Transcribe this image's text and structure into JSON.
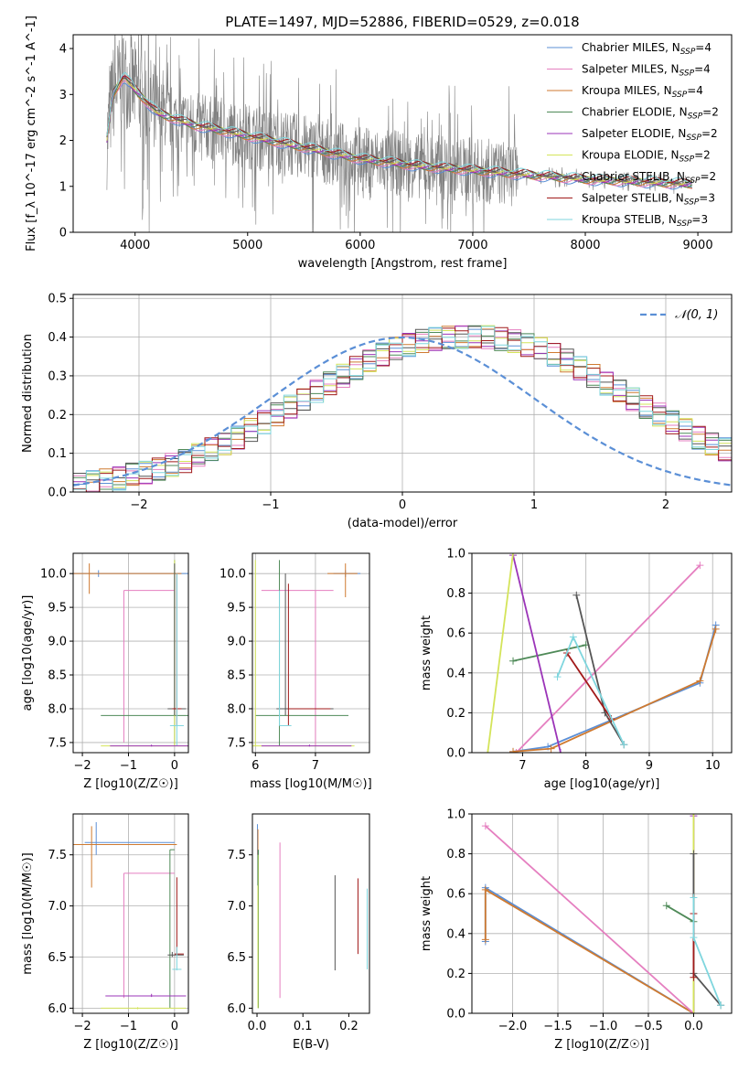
{
  "figure": {
    "title": "PLATE=1497, MJD=52886, FIBERID=0529, z=0.018"
  },
  "colors": {
    "chabrier_miles": "#5b8fd6",
    "salpeter_miles": "#e57fc0",
    "kroupa_miles": "#cf7a30",
    "chabrier_elodie": "#4f8a58",
    "salpeter_elodie": "#9b34b8",
    "kroupa_elodie": "#d4e45a",
    "chabrier_stelib": "#555555",
    "salpeter_stelib": "#a11a1a",
    "kroupa_stelib": "#7fd6de",
    "data": "#808080",
    "normal": "#5b8fd6",
    "grid": "#b0b0b0"
  },
  "chart_data": [
    {
      "id": "spectrum",
      "type": "line",
      "title": "",
      "xlabel": "wavelength [Angstrom, rest frame]",
      "ylabel": "Flux [f_λ 10^-17 erg cm^-2 s^-1 A^-1]",
      "xlim": [
        3450,
        9300
      ],
      "ylim": [
        0,
        4.3
      ],
      "xticks": [
        4000,
        5000,
        6000,
        7000,
        8000,
        9000
      ],
      "yticks": [
        0,
        1,
        2,
        3,
        4
      ],
      "grid": false,
      "legend": "top-right",
      "legend_entries": [
        {
          "label": "Chabrier MILES, N",
          "sub": "SSP",
          "n": "=4",
          "color": "chabrier_miles"
        },
        {
          "label": "Salpeter MILES, N",
          "sub": "SSP",
          "n": "=4",
          "color": "salpeter_miles"
        },
        {
          "label": "Kroupa MILES, N",
          "sub": "SSP",
          "n": "=4",
          "color": "kroupa_miles"
        },
        {
          "label": "Chabrier ELODIE, N",
          "sub": "SSP",
          "n": "=2",
          "color": "chabrier_elodie"
        },
        {
          "label": "Salpeter ELODIE, N",
          "sub": "SSP",
          "n": "=2",
          "color": "salpeter_elodie"
        },
        {
          "label": "Kroupa ELODIE, N",
          "sub": "SSP",
          "n": "=2",
          "color": "kroupa_elodie"
        },
        {
          "label": "Chabrier STELIB, N",
          "sub": "SSP",
          "n": "=2",
          "color": "chabrier_stelib"
        },
        {
          "label": "Salpeter STELIB, N",
          "sub": "SSP",
          "n": "=3",
          "color": "salpeter_stelib"
        },
        {
          "label": "Kroupa STELIB, N",
          "sub": "SSP",
          "n": "=3",
          "color": "kroupa_stelib"
        }
      ],
      "model_curve": {
        "x": [
          3750,
          3800,
          3900,
          4000,
          4200,
          4500,
          5000,
          5500,
          6000,
          6500,
          7000,
          7500,
          8000,
          8500,
          8900
        ],
        "y": [
          2.0,
          3.0,
          3.4,
          3.1,
          2.6,
          2.35,
          2.1,
          1.85,
          1.6,
          1.45,
          1.35,
          1.25,
          1.15,
          1.1,
          1.05
        ]
      },
      "data_range": [
        3750,
        7400
      ]
    },
    {
      "id": "residuals",
      "type": "line",
      "xlabel": "(data-model)/error",
      "ylabel": "Normed distribution",
      "xlim": [
        -2.5,
        2.5
      ],
      "ylim": [
        0,
        0.51
      ],
      "xticks": [
        -2,
        -1,
        0,
        1,
        2
      ],
      "yticks": [
        0.0,
        0.1,
        0.2,
        0.3,
        0.4,
        0.5
      ],
      "grid": true,
      "legend": "top-right",
      "legend_label": "N(0,1)",
      "bin_width": 0.1,
      "hist_base": [
        0.02,
        0.025,
        0.03,
        0.035,
        0.045,
        0.05,
        0.06,
        0.07,
        0.08,
        0.095,
        0.11,
        0.125,
        0.14,
        0.16,
        0.18,
        0.2,
        0.22,
        0.24,
        0.26,
        0.28,
        0.3,
        0.32,
        0.34,
        0.355,
        0.37,
        0.38,
        0.39,
        0.395,
        0.4,
        0.4,
        0.4,
        0.4,
        0.395,
        0.39,
        0.38,
        0.37,
        0.355,
        0.34,
        0.32,
        0.3,
        0.28,
        0.26,
        0.24,
        0.22,
        0.2,
        0.18,
        0.16,
        0.14,
        0.125,
        0.11
      ]
    },
    {
      "id": "z-age",
      "type": "scatter",
      "xlabel": "Z [log10(Z/Z☉)]",
      "ylabel": "age [log10(age/yr)]",
      "xlim": [
        -2.2,
        0.3
      ],
      "ylim": [
        7.35,
        10.3
      ],
      "xticks": [
        -2,
        -1,
        0
      ],
      "yticks": [
        7.5,
        8.0,
        8.5,
        9.0,
        9.5,
        10.0
      ],
      "grid": true,
      "points": [
        {
          "model": "chabrier_miles",
          "x": -1.65,
          "y": 10.0,
          "ex": [
            -2.2,
            0.3
          ],
          "ey": [
            9.95,
            10.05
          ]
        },
        {
          "model": "kroupa_miles",
          "x": -1.85,
          "y": 10.0,
          "ex": [
            -2.2,
            0.15
          ],
          "ey": [
            9.7,
            10.15
          ]
        },
        {
          "model": "salpeter_miles",
          "x": -1.1,
          "y": 9.75,
          "ex": [
            -1.1,
            0.0
          ],
          "ey": [
            7.5,
            9.75
          ]
        },
        {
          "model": "chabrier_elodie",
          "x": 0.0,
          "y": 7.9,
          "ex": [
            -1.6,
            0.3
          ],
          "ey": [
            7.45,
            10.2
          ]
        },
        {
          "model": "kroupa_elodie",
          "x": 0.0,
          "y": 7.45,
          "ex": [
            -1.6,
            0.3
          ],
          "ey": [
            7.45,
            10.2
          ]
        },
        {
          "model": "chabrier_stelib",
          "x": 0.0,
          "y": 8.0,
          "ex": [
            -0.15,
            0.25
          ],
          "ey": [
            7.9,
            10.15
          ]
        },
        {
          "model": "salpeter_stelib",
          "x": 0.05,
          "y": 8.0,
          "ex": [
            -0.05,
            0.15
          ],
          "ey": [
            7.75,
            10.0
          ]
        },
        {
          "model": "kroupa_stelib",
          "x": 0.05,
          "y": 7.75,
          "ex": [
            -0.1,
            0.2
          ],
          "ey": [
            7.45,
            10.0
          ]
        },
        {
          "model": "salpeter_elodie",
          "x": -0.5,
          "y": 7.45,
          "ex": [
            -1.4,
            0.3
          ],
          "ey": [
            7.44,
            7.47
          ]
        }
      ]
    },
    {
      "id": "mass-age",
      "type": "scatter",
      "xlabel": "mass [log10(M/M☉)]",
      "ylabel": "",
      "xlim": [
        5.95,
        7.9
      ],
      "ylim": [
        7.35,
        10.3
      ],
      "xticks": [
        6,
        7
      ],
      "yticks": [
        7.5,
        8.0,
        8.5,
        9.0,
        9.5,
        10.0
      ],
      "grid": true,
      "points": [
        {
          "model": "chabrier_miles",
          "x": 7.5,
          "y": 10.0,
          "ex": [
            7.3,
            7.75
          ],
          "ey": [
            9.95,
            10.05
          ]
        },
        {
          "model": "kroupa_miles",
          "x": 7.5,
          "y": 10.0,
          "ex": [
            7.2,
            7.7
          ],
          "ey": [
            9.65,
            10.15
          ]
        },
        {
          "model": "salpeter_miles",
          "x": 7.0,
          "y": 9.75,
          "ex": [
            6.1,
            7.3
          ],
          "ey": [
            7.45,
            9.75
          ]
        },
        {
          "model": "chabrier_elodie",
          "x": 6.4,
          "y": 7.9,
          "ex": [
            6.0,
            7.55
          ],
          "ey": [
            7.45,
            10.2
          ]
        },
        {
          "model": "kroupa_elodie",
          "x": 6.0,
          "y": 7.45,
          "ex": [
            5.95,
            7.65
          ],
          "ey": [
            7.45,
            10.2
          ]
        },
        {
          "model": "chabrier_stelib",
          "x": 6.5,
          "y": 8.0,
          "ex": [
            6.35,
            7.3
          ],
          "ey": [
            7.9,
            10.0
          ]
        },
        {
          "model": "salpeter_stelib",
          "x": 6.55,
          "y": 8.0,
          "ex": [
            6.55,
            7.25
          ],
          "ey": [
            7.75,
            9.85
          ]
        },
        {
          "model": "kroupa_stelib",
          "x": 6.4,
          "y": 7.75,
          "ex": [
            6.4,
            6.6
          ],
          "ey": [
            7.75,
            9.75
          ]
        },
        {
          "model": "salpeter_elodie",
          "x": 6.9,
          "y": 7.45,
          "ex": [
            6.1,
            7.6
          ],
          "ey": [
            7.44,
            7.47
          ]
        }
      ]
    },
    {
      "id": "age-weight",
      "type": "line",
      "xlabel": "age [log10(age/yr)]",
      "ylabel": "mass weight",
      "xlim": [
        6.2,
        10.3
      ],
      "ylim": [
        0,
        1.0
      ],
      "xticks": [
        7,
        8,
        9,
        10
      ],
      "yticks": [
        0.0,
        0.2,
        0.4,
        0.6,
        0.8,
        1.0
      ],
      "grid": true,
      "series": [
        {
          "model": "chabrier_miles",
          "x": [
            6.85,
            7.4,
            9.8,
            10.05
          ],
          "y": [
            0.005,
            0.03,
            0.35,
            0.64
          ]
        },
        {
          "model": "salpeter_miles",
          "x": [
            6.9,
            9.8
          ],
          "y": [
            0.0,
            0.94
          ]
        },
        {
          "model": "kroupa_miles",
          "x": [
            6.85,
            7.45,
            9.8,
            10.05
          ],
          "y": [
            0.005,
            0.02,
            0.36,
            0.62
          ]
        },
        {
          "model": "chabrier_elodie",
          "x": [
            6.85,
            8.0
          ],
          "y": [
            0.46,
            0.54
          ]
        },
        {
          "model": "salpeter_elodie",
          "x": [
            6.85,
            7.6
          ],
          "y": [
            0.99,
            0.0
          ]
        },
        {
          "model": "kroupa_elodie",
          "x": [
            6.45,
            6.85
          ],
          "y": [
            0.0,
            1.0
          ]
        },
        {
          "model": "chabrier_stelib",
          "x": [
            7.85,
            8.3,
            8.6
          ],
          "y": [
            0.79,
            0.2,
            0.04
          ]
        },
        {
          "model": "salpeter_stelib",
          "x": [
            7.7,
            8.4
          ],
          "y": [
            0.5,
            0.17
          ]
        },
        {
          "model": "kroupa_stelib",
          "x": [
            7.55,
            7.8,
            8.6
          ],
          "y": [
            0.38,
            0.58,
            0.04
          ]
        }
      ]
    },
    {
      "id": "z-mass",
      "type": "scatter",
      "xlabel": "Z [log10(Z/Z☉)]",
      "ylabel": "mass [log10(M/M☉)]",
      "xlim": [
        -2.2,
        0.3
      ],
      "ylim": [
        5.95,
        7.9
      ],
      "xticks": [
        -2,
        -1,
        0
      ],
      "yticks": [
        6.0,
        6.5,
        7.0,
        7.5
      ],
      "grid": true,
      "points": [
        {
          "model": "chabrier_miles",
          "x": -1.7,
          "y": 7.62,
          "ex": [
            -1.95,
            0.0
          ],
          "ey": [
            7.5,
            7.82
          ]
        },
        {
          "model": "kroupa_miles",
          "x": -1.8,
          "y": 7.6,
          "ex": [
            -2.2,
            0.05
          ],
          "ey": [
            7.18,
            7.78
          ]
        },
        {
          "model": "salpeter_miles",
          "x": -1.1,
          "y": 7.32,
          "ex": [
            -1.1,
            0.0
          ],
          "ey": [
            6.1,
            7.32
          ]
        },
        {
          "model": "chabrier_elodie",
          "x": -0.1,
          "y": 7.55,
          "ex": [
            -0.1,
            0.0
          ],
          "ey": [
            6.0,
            7.55
          ]
        },
        {
          "model": "salpeter_elodie",
          "x": -0.5,
          "y": 6.12,
          "ex": [
            -1.5,
            0.25
          ],
          "ey": [
            6.11,
            6.14
          ]
        },
        {
          "model": "kroupa_elodie",
          "x": -0.8,
          "y": 6.0,
          "ex": [
            -1.6,
            0.25
          ],
          "ey": [
            5.99,
            6.01
          ]
        },
        {
          "model": "chabrier_stelib",
          "x": -0.05,
          "y": 6.52,
          "ex": [
            -0.15,
            0.2
          ],
          "ey": [
            6.5,
            6.55
          ]
        },
        {
          "model": "salpeter_stelib",
          "x": 0.05,
          "y": 6.53,
          "ex": [
            0.0,
            0.2
          ],
          "ey": [
            6.52,
            7.28
          ]
        },
        {
          "model": "kroupa_stelib",
          "x": 0.05,
          "y": 6.38,
          "ex": [
            -0.05,
            0.15
          ],
          "ey": [
            6.37,
            6.6
          ]
        }
      ]
    },
    {
      "id": "ebv-mass",
      "type": "scatter",
      "xlabel": "E(B-V)",
      "ylabel": "",
      "xlim": [
        -0.01,
        0.245
      ],
      "ylim": [
        5.95,
        7.9
      ],
      "xticks": [
        0.0,
        0.1,
        0.2
      ],
      "yticks": [
        6.0,
        6.5,
        7.0,
        7.5
      ],
      "grid": false,
      "points": [
        {
          "model": "chabrier_miles",
          "x": 0.001,
          "ey": [
            7.2,
            7.8
          ]
        },
        {
          "model": "kroupa_miles",
          "x": 0.002,
          "ey": [
            7.0,
            7.75
          ]
        },
        {
          "model": "chabrier_elodie",
          "x": 0.003,
          "ey": [
            6.0,
            7.55
          ]
        },
        {
          "model": "kroupa_elodie",
          "x": 0.002,
          "ey": [
            6.0,
            7.5
          ]
        },
        {
          "model": "salpeter_miles",
          "x": 0.05,
          "ey": [
            6.1,
            7.62
          ]
        },
        {
          "model": "chabrier_stelib",
          "x": 0.17,
          "ey": [
            6.37,
            7.3
          ]
        },
        {
          "model": "salpeter_stelib",
          "x": 0.22,
          "ey": [
            6.53,
            7.27
          ]
        },
        {
          "model": "kroupa_stelib",
          "x": 0.24,
          "ey": [
            6.38,
            7.17
          ]
        }
      ]
    },
    {
      "id": "z-weight",
      "type": "line",
      "xlabel": "Z [log10(Z/Z☉)]",
      "ylabel": "mass weight",
      "xlim": [
        -2.45,
        0.42
      ],
      "ylim": [
        0,
        1.0
      ],
      "xticks": [
        -2.0,
        -1.5,
        -1.0,
        -0.5,
        0.0
      ],
      "yticks": [
        0.0,
        0.2,
        0.4,
        0.6,
        0.8,
        1.0
      ],
      "grid": true,
      "series": [
        {
          "model": "chabrier_miles",
          "x": [
            -2.3,
            -2.3,
            0.0
          ],
          "y": [
            0.36,
            0.63,
            0.0
          ]
        },
        {
          "model": "kroupa_miles",
          "x": [
            -2.3,
            -2.3,
            0.0
          ],
          "y": [
            0.37,
            0.62,
            0.0
          ]
        },
        {
          "model": "salpeter_miles",
          "x": [
            -2.3,
            0.0
          ],
          "y": [
            0.94,
            0.0
          ]
        },
        {
          "model": "chabrier_elodie",
          "x": [
            -0.3,
            0.0,
            0.0
          ],
          "y": [
            0.54,
            0.46,
            0.0
          ]
        },
        {
          "model": "salpeter_elodie",
          "x": [
            0.0,
            0.0
          ],
          "y": [
            0.0,
            0.99
          ]
        },
        {
          "model": "kroupa_elodie",
          "x": [
            0.0,
            0.0
          ],
          "y": [
            0.0,
            1.0
          ]
        },
        {
          "model": "chabrier_stelib",
          "x": [
            0.0,
            0.0,
            0.3
          ],
          "y": [
            0.8,
            0.2,
            0.04
          ]
        },
        {
          "model": "salpeter_stelib",
          "x": [
            0.0,
            0.0
          ],
          "y": [
            0.5,
            0.18
          ]
        },
        {
          "model": "kroupa_stelib",
          "x": [
            0.0,
            0.0,
            0.3
          ],
          "y": [
            0.58,
            0.38,
            0.04
          ]
        }
      ]
    }
  ]
}
